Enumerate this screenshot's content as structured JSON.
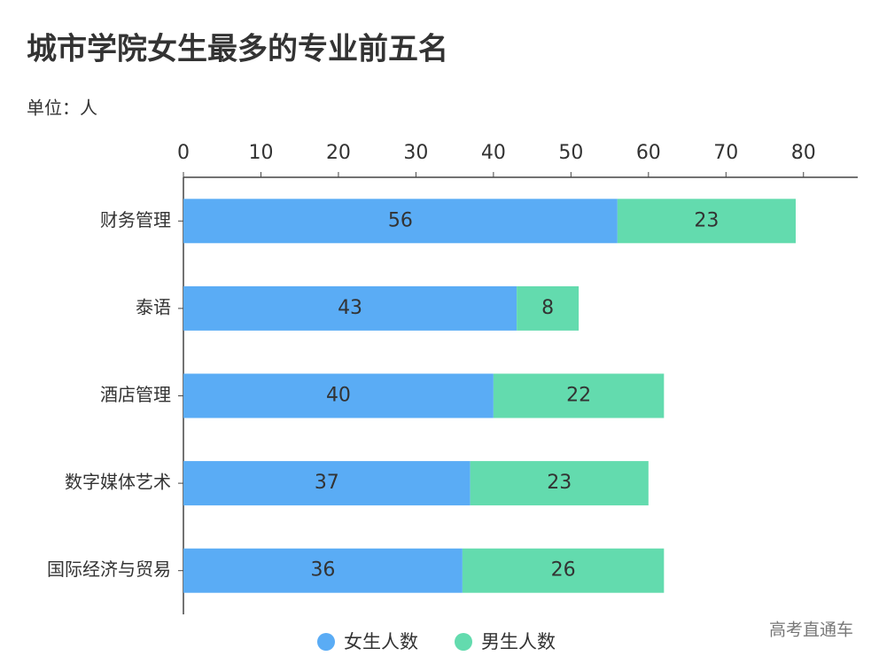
{
  "chart_data": {
    "type": "bar",
    "orientation": "horizontal",
    "stacked": true,
    "title": "城市学院女生最多的专业前五名",
    "subtitle": "单位：人",
    "watermark": "高考直通车",
    "categories": [
      "财务管理",
      "泰语",
      "酒店管理",
      "数字媒体艺术",
      "国际经济与贸易"
    ],
    "series": [
      {
        "name": "女生人数",
        "color": "#5aacf5",
        "values": [
          56,
          43,
          40,
          37,
          36
        ]
      },
      {
        "name": "男生人数",
        "color": "#63dbae",
        "values": [
          23,
          8,
          22,
          23,
          26
        ]
      }
    ],
    "xlim": [
      0,
      87
    ],
    "xticks": [
      0,
      10,
      20,
      30,
      40,
      50,
      60,
      70,
      80
    ]
  }
}
